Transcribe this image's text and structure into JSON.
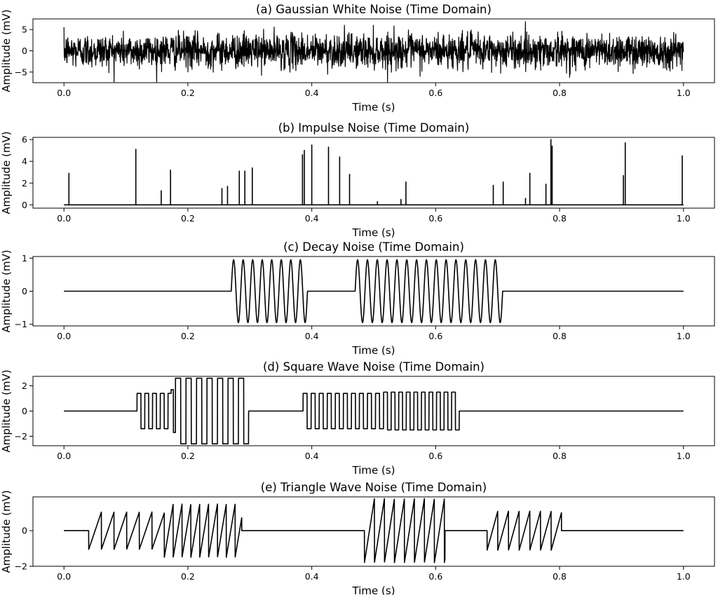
{
  "chart_data": [
    {
      "type": "line",
      "signal": "gaussian",
      "title": "(a) Gaussian White Noise (Time Domain)",
      "xlabel": "Time (s)",
      "ylabel": "Amplitude (mV)",
      "xlim": [
        0,
        1
      ],
      "ylim": [
        -7.5,
        7.5
      ],
      "xticks": [
        0.0,
        0.2,
        0.4,
        0.6,
        0.8,
        1.0
      ],
      "xtick_labels": [
        "0.0",
        "0.2",
        "0.4",
        "0.6",
        "0.8",
        "1.0"
      ],
      "yticks": [
        -5,
        0,
        5
      ],
      "ytick_labels": [
        "−5",
        "0",
        "5"
      ],
      "grid": false,
      "params": {
        "std": 2.0,
        "min": -7.3,
        "max": 7.6
      }
    },
    {
      "type": "line",
      "signal": "impulse",
      "title": "(b) Impulse Noise (Time Domain)",
      "xlabel": "Time (s)",
      "ylabel": "Amplitude (mV)",
      "xlim": [
        0,
        1
      ],
      "ylim": [
        -0.3,
        6.2
      ],
      "xticks": [
        0.0,
        0.2,
        0.4,
        0.6,
        0.8,
        1.0
      ],
      "xtick_labels": [
        "0.0",
        "0.2",
        "0.4",
        "0.6",
        "0.8",
        "1.0"
      ],
      "yticks": [
        0,
        2,
        4,
        6
      ],
      "ytick_labels": [
        "0",
        "2",
        "4",
        "6"
      ],
      "grid": false,
      "impulses": [
        [
          0.008,
          2.9
        ],
        [
          0.116,
          5.1
        ],
        [
          0.157,
          1.3
        ],
        [
          0.172,
          3.2
        ],
        [
          0.255,
          1.5
        ],
        [
          0.264,
          1.7
        ],
        [
          0.283,
          3.1
        ],
        [
          0.292,
          3.1
        ],
        [
          0.304,
          3.4
        ],
        [
          0.385,
          4.6
        ],
        [
          0.388,
          5.0
        ],
        [
          0.4,
          5.5
        ],
        [
          0.427,
          5.3
        ],
        [
          0.445,
          4.4
        ],
        [
          0.461,
          2.8
        ],
        [
          0.506,
          0.3
        ],
        [
          0.544,
          0.5
        ],
        [
          0.552,
          2.1
        ],
        [
          0.693,
          1.8
        ],
        [
          0.709,
          2.1
        ],
        [
          0.745,
          0.6
        ],
        [
          0.752,
          2.9
        ],
        [
          0.778,
          1.9
        ],
        [
          0.786,
          6.0
        ],
        [
          0.788,
          5.4
        ],
        [
          0.903,
          2.7
        ],
        [
          0.906,
          5.7
        ],
        [
          0.998,
          4.5
        ]
      ]
    },
    {
      "type": "line",
      "signal": "sine-bursts",
      "title": "(c) Decay Noise (Time Domain)",
      "xlabel": "Time (s)",
      "ylabel": "Amplitude (mV)",
      "xlim": [
        0,
        1
      ],
      "ylim": [
        -1.05,
        1.05
      ],
      "xticks": [
        0.0,
        0.2,
        0.4,
        0.6,
        0.8,
        1.0
      ],
      "xtick_labels": [
        "0.0",
        "0.2",
        "0.4",
        "0.6",
        "0.8",
        "1.0"
      ],
      "yticks": [
        -1,
        0,
        1
      ],
      "ytick_labels": [
        "−1",
        "0",
        "1"
      ],
      "grid": false,
      "bursts": [
        {
          "start": 0.27,
          "end": 0.393,
          "frequency": 65,
          "amplitude": 0.95
        },
        {
          "start": 0.47,
          "end": 0.708,
          "frequency": 63,
          "amplitude": 0.95
        }
      ]
    },
    {
      "type": "line",
      "signal": "square-bursts",
      "title": "(d) Square Wave Noise (Time Domain)",
      "xlabel": "Time (s)",
      "ylabel": "Amplitude (mV)",
      "xlim": [
        0,
        1
      ],
      "ylim": [
        -2.75,
        2.75
      ],
      "xticks": [
        0.0,
        0.2,
        0.4,
        0.6,
        0.8,
        1.0
      ],
      "xtick_labels": [
        "0.0",
        "0.2",
        "0.4",
        "0.6",
        "0.8",
        "1.0"
      ],
      "yticks": [
        -2,
        0,
        2
      ],
      "ytick_labels": [
        "−2",
        "0",
        "2"
      ],
      "grid": false,
      "bursts": [
        {
          "start": 0.118,
          "end": 0.173,
          "frequency": 80,
          "amplitude": 1.4
        },
        {
          "start": 0.173,
          "end": 0.18,
          "frequency": 140,
          "amplitude": 1.7
        },
        {
          "start": 0.18,
          "end": 0.298,
          "frequency": 59,
          "amplitude": 2.6
        },
        {
          "start": 0.386,
          "end": 0.516,
          "frequency": 77,
          "amplitude": 1.4
        },
        {
          "start": 0.516,
          "end": 0.638,
          "frequency": 82,
          "amplitude": 1.5
        }
      ]
    },
    {
      "type": "line",
      "signal": "sawtooth-bursts",
      "title": "(e) Triangle Wave Noise (Time Domain)",
      "xlabel": "Time (s)",
      "ylabel": "Amplitude (mV)",
      "xlim": [
        0,
        1
      ],
      "ylim": [
        -2.0,
        1.9
      ],
      "xticks": [
        0.0,
        0.2,
        0.4,
        0.6,
        0.8,
        1.0
      ],
      "xtick_labels": [
        "0.0",
        "0.2",
        "0.4",
        "0.6",
        "0.8",
        "1.0"
      ],
      "yticks": [
        -2,
        0
      ],
      "ytick_labels": [
        "−2",
        "0"
      ],
      "grid": false,
      "bursts": [
        {
          "start": 0.04,
          "end": 0.162,
          "frequency": 49,
          "amplitude": 1.05
        },
        {
          "start": 0.162,
          "end": 0.287,
          "frequency": 70,
          "amplitude": 1.5
        },
        {
          "start": 0.485,
          "end": 0.615,
          "frequency": 62,
          "amplitude": 1.8
        },
        {
          "start": 0.683,
          "end": 0.803,
          "frequency": 58,
          "amplitude": 1.1
        }
      ]
    }
  ]
}
